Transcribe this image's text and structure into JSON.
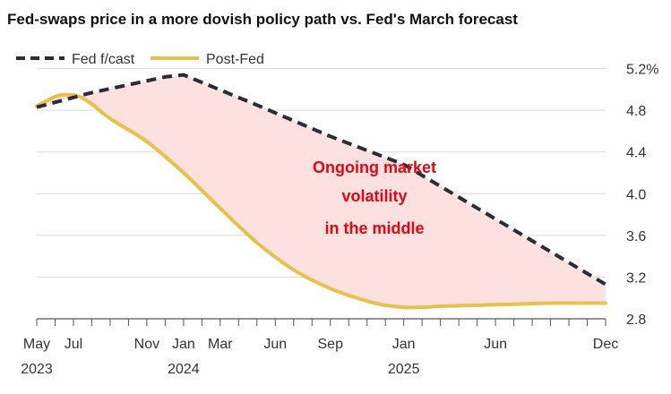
{
  "chart_data": {
    "type": "line",
    "title": "Fed-swaps price in a more dovish policy path vs. Fed's March forecast",
    "xlabel": "",
    "ylabel": "",
    "ylim": [
      2.8,
      5.3
    ],
    "yticks": [
      {
        "value": 5.2,
        "label": "5.2%"
      },
      {
        "value": 4.8,
        "label": "4.8"
      },
      {
        "value": 4.4,
        "label": "4.4"
      },
      {
        "value": 4.0,
        "label": "4.0"
      },
      {
        "value": 3.6,
        "label": "3.6"
      },
      {
        "value": 3.2,
        "label": "3.2"
      },
      {
        "value": 2.8,
        "label": "2.8"
      }
    ],
    "xlim": [
      0,
      31
    ],
    "xticks": [
      {
        "month": 0,
        "label": "May"
      },
      {
        "month": 2,
        "label": "Jul"
      },
      {
        "month": 6,
        "label": "Nov"
      },
      {
        "month": 8,
        "label": "Jan"
      },
      {
        "month": 10,
        "label": "Mar"
      },
      {
        "month": 13,
        "label": "Jun"
      },
      {
        "month": 16,
        "label": "Sep"
      },
      {
        "month": 20,
        "label": "Jan"
      },
      {
        "month": 25,
        "label": "Jun"
      },
      {
        "month": 31,
        "label": "Dec"
      }
    ],
    "year_labels": [
      {
        "month": 0,
        "label": "2023"
      },
      {
        "month": 8,
        "label": "2024"
      },
      {
        "month": 20,
        "label": "2025"
      }
    ],
    "series": [
      {
        "name": "Fed f/cast",
        "style": "dashed",
        "color": "#2b2b3a",
        "x": [
          0,
          3,
          7,
          8,
          12,
          16,
          20,
          31
        ],
        "y": [
          4.83,
          4.97,
          5.12,
          5.14,
          4.85,
          4.55,
          4.28,
          3.13
        ]
      },
      {
        "name": "Post-Fed",
        "style": "solid",
        "color": "#e6c24a",
        "x": [
          0,
          1,
          1.5,
          2.2,
          3,
          4,
          6,
          8,
          10,
          12,
          14,
          16,
          18,
          19,
          20,
          21,
          22,
          24,
          26,
          28,
          30,
          31
        ],
        "y": [
          4.84,
          4.93,
          4.95,
          4.94,
          4.86,
          4.72,
          4.5,
          4.2,
          3.86,
          3.53,
          3.27,
          3.09,
          2.97,
          2.93,
          2.91,
          2.91,
          2.92,
          2.93,
          2.94,
          2.95,
          2.95,
          2.95
        ]
      }
    ],
    "shaded_area": {
      "between": [
        "Fed f/cast",
        "Post-Fed"
      ],
      "color": "#fde0e0"
    },
    "annotation": {
      "lines": [
        "Ongoing market",
        "volatility",
        "in the middle"
      ],
      "color": "#e30613"
    }
  }
}
